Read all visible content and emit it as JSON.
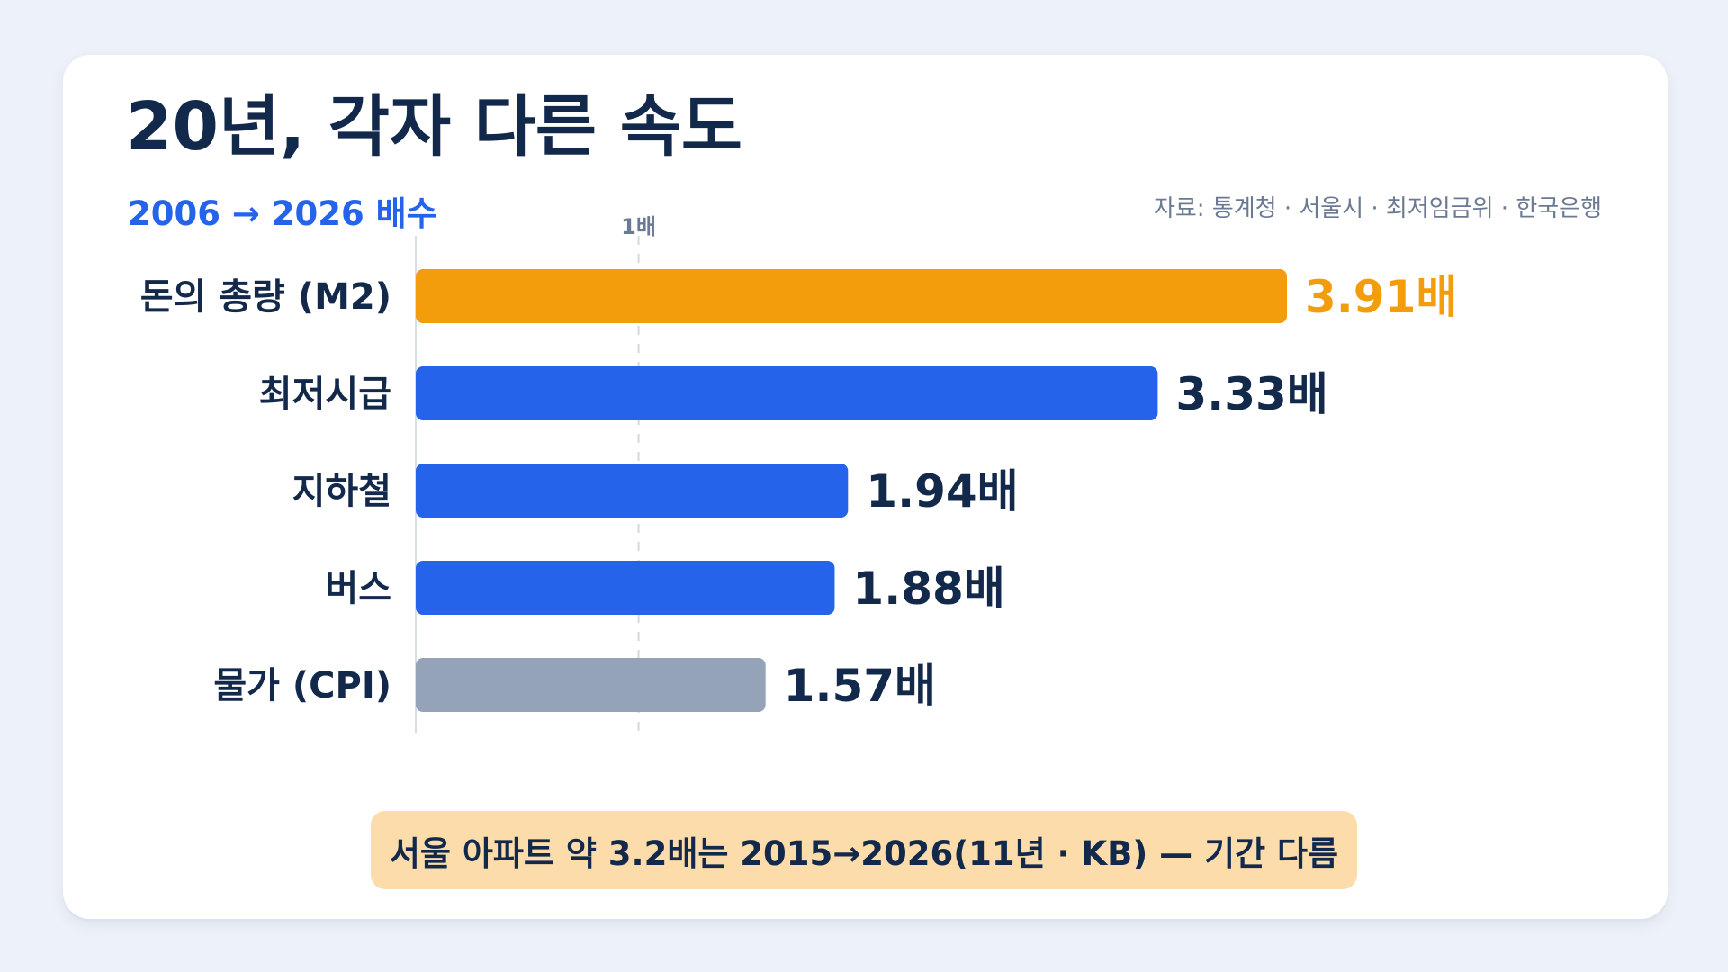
{
  "header": {
    "title": "20년, 각자 다른 속도",
    "subtitle": "2006 → 2026 배수",
    "source": "자료: 통계청 · 서울시 · 최저임금위 · 한국은행"
  },
  "chart_data": {
    "type": "bar",
    "orientation": "horizontal",
    "categories": [
      "돈의 총량 (M2)",
      "최저시급",
      "지하철",
      "버스",
      "물가 (CPI)"
    ],
    "values": [
      3.91,
      3.33,
      1.94,
      1.88,
      1.57
    ],
    "value_labels": [
      "3.91배",
      "3.33배",
      "1.94배",
      "1.88배",
      "1.57배"
    ],
    "bar_colors": [
      "#f39c0c",
      "#2563eb",
      "#2563eb",
      "#2563eb",
      "#94a3b8"
    ],
    "value_label_colors": [
      "#f39c0c",
      "#13294b",
      "#13294b",
      "#13294b",
      "#13294b"
    ],
    "xlim": [
      0,
      3.91
    ],
    "reference_line": {
      "value": 1,
      "label": "1배"
    },
    "grid": false,
    "legend": "none"
  },
  "footnote": {
    "text": "서울 아파트 약 3.2배는 2015→2026(11년 · KB) — 기간 다름",
    "background": "#fbdcaa"
  }
}
